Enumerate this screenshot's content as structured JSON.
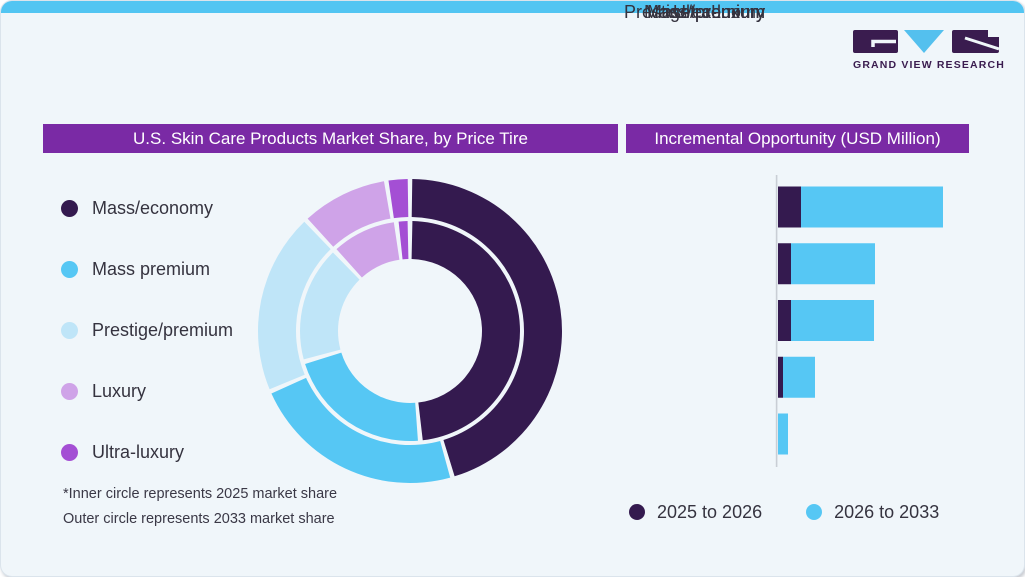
{
  "brand": {
    "logo_text": "GRAND VIEW RESEARCH"
  },
  "colors": {
    "accent_top_bar": "#52c5f2",
    "title_bar": "#7a2aa5",
    "card_background": "#f0f6fa",
    "logo_dark": "#3a1c4f",
    "logo_blue": "#54c0ee",
    "axis_line": "#c9ced5"
  },
  "donut_panel": {
    "title": "U.S. Skin Care Products Market Share, by Price Tire",
    "footnote_line1": "*Inner circle represents 2025 market share",
    "footnote_line2": "Outer circle represents 2033 market share",
    "legend": [
      {
        "label": "Mass/economy",
        "color": "#341a4f"
      },
      {
        "label": "Mass premium",
        "color": "#56c7f4"
      },
      {
        "label": "Prestige/premium",
        "color": "#bfe5f8"
      },
      {
        "label": "Luxury",
        "color": "#cfa3e8"
      },
      {
        "label": "Ultra-luxury",
        "color": "#a44fd4"
      }
    ]
  },
  "bar_panel": {
    "title": "Incremental Opportunity (USD Million)",
    "legend": [
      {
        "label": "2025 to 2026",
        "color": "#341a4f"
      },
      {
        "label": "2026 to 2033",
        "color": "#56c7f4"
      }
    ]
  },
  "chart_data": [
    {
      "type": "donut-nested",
      "title": "U.S. Skin Care Products Market Share, by Price Tire",
      "categories": [
        "Mass/economy",
        "Mass premium",
        "Prestige/premium",
        "Luxury",
        "Ultra-luxury"
      ],
      "colors": [
        "#341a4f",
        "#56c7f4",
        "#bfe5f8",
        "#cfa3e8",
        "#a44fd4"
      ],
      "start_angle_deg": 0,
      "direction": "clockwise",
      "series": [
        {
          "name": "2025 market share (inner circle)",
          "values": [
            48.5,
            22,
            17.5,
            10,
            2
          ]
        },
        {
          "name": "2033 market share (outer circle)",
          "values": [
            45.5,
            23,
            19.5,
            9.5,
            2.5
          ]
        }
      ],
      "legend_position": "left"
    },
    {
      "type": "bar",
      "orientation": "horizontal",
      "stacked": true,
      "title": "Incremental Opportunity (USD Million)",
      "categories": [
        "Mass/economy",
        "Mass premium",
        "Prestige/premium",
        "Luxury",
        "Ultra-luxury"
      ],
      "series": [
        {
          "name": "2025 to 2026",
          "color": "#341a4f",
          "values": [
            23,
            13,
            13,
            5,
            0
          ]
        },
        {
          "name": "2026 to 2033",
          "color": "#56c7f4",
          "values": [
            142,
            84,
            83,
            32,
            10
          ]
        }
      ],
      "value_note": "no numeric axis shown; values estimated in relative units",
      "xlim": [
        0,
        180
      ],
      "grid": false,
      "legend_position": "bottom"
    }
  ]
}
